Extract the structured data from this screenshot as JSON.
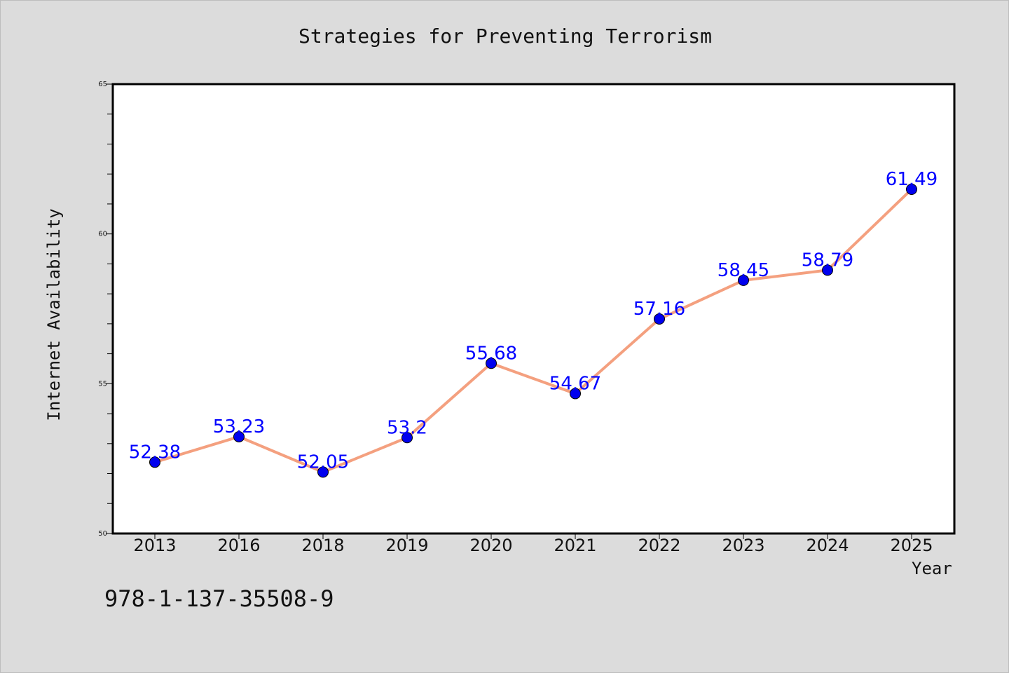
{
  "chart_data": {
    "type": "line",
    "title": "Strategies for Preventing Terrorism",
    "xlabel": "Year",
    "ylabel": "Internet Availability",
    "categories": [
      "2013",
      "2016",
      "2018",
      "2019",
      "2020",
      "2021",
      "2022",
      "2023",
      "2024",
      "2025"
    ],
    "series": [
      {
        "values": [
          52.38,
          53.23,
          52.05,
          53.2,
          55.68,
          54.67,
          57.16,
          58.45,
          58.79,
          61.49
        ]
      }
    ],
    "data_labels": [
      "52.38",
      "53.23",
      "52.05",
      "53.2",
      "55.68",
      "54.67",
      "57.16",
      "58.45",
      "58.79",
      "61.49"
    ],
    "ylim": [
      50,
      65
    ],
    "yticks": [
      50,
      55,
      60,
      65
    ],
    "grid": false,
    "legend": "none",
    "colors": {
      "line": "#f4a07f",
      "marker": "#0000ee",
      "label": "#0000ff",
      "background": "#dcdcdc",
      "plot_background": "#ffffff"
    }
  },
  "footnote": "978-1-137-35508-9"
}
